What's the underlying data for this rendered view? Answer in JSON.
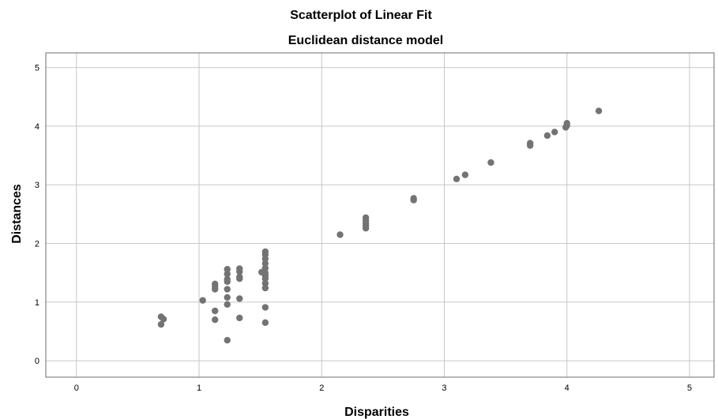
{
  "chart_data": {
    "type": "scatter",
    "title": "Scatterplot of Linear Fit",
    "subtitle": "Euclidean distance model",
    "xlabel": "Disparities",
    "ylabel": "Distances",
    "xlim": [
      -0.25,
      5.2
    ],
    "ylim": [
      -0.28,
      5.25
    ],
    "xticks": [
      "0",
      "1",
      "2",
      "3",
      "4",
      "5"
    ],
    "yticks": [
      "0",
      "1",
      "2",
      "3",
      "4",
      "5"
    ],
    "grid": true,
    "legend": "none",
    "point_color": "#737373",
    "points": [
      {
        "x": 0.69,
        "y": 0.75
      },
      {
        "x": 0.71,
        "y": 0.71
      },
      {
        "x": 0.69,
        "y": 0.62
      },
      {
        "x": 1.03,
        "y": 1.03
      },
      {
        "x": 1.13,
        "y": 1.31
      },
      {
        "x": 1.13,
        "y": 1.27
      },
      {
        "x": 1.13,
        "y": 1.22
      },
      {
        "x": 1.13,
        "y": 0.85
      },
      {
        "x": 1.13,
        "y": 0.7
      },
      {
        "x": 1.23,
        "y": 1.56
      },
      {
        "x": 1.23,
        "y": 1.48
      },
      {
        "x": 1.23,
        "y": 1.39
      },
      {
        "x": 1.23,
        "y": 1.35
      },
      {
        "x": 1.23,
        "y": 1.22
      },
      {
        "x": 1.23,
        "y": 1.08
      },
      {
        "x": 1.23,
        "y": 0.96
      },
      {
        "x": 1.23,
        "y": 0.35
      },
      {
        "x": 1.33,
        "y": 1.57
      },
      {
        "x": 1.33,
        "y": 1.52
      },
      {
        "x": 1.33,
        "y": 1.43
      },
      {
        "x": 1.33,
        "y": 1.4
      },
      {
        "x": 1.33,
        "y": 1.06
      },
      {
        "x": 1.33,
        "y": 0.73
      },
      {
        "x": 1.51,
        "y": 1.51
      },
      {
        "x": 1.54,
        "y": 1.86
      },
      {
        "x": 1.54,
        "y": 1.81
      },
      {
        "x": 1.54,
        "y": 1.74
      },
      {
        "x": 1.54,
        "y": 1.66
      },
      {
        "x": 1.54,
        "y": 1.58
      },
      {
        "x": 1.54,
        "y": 1.5
      },
      {
        "x": 1.54,
        "y": 1.45
      },
      {
        "x": 1.54,
        "y": 1.4
      },
      {
        "x": 1.54,
        "y": 1.32
      },
      {
        "x": 1.54,
        "y": 1.24
      },
      {
        "x": 1.54,
        "y": 0.91
      },
      {
        "x": 1.54,
        "y": 0.65
      },
      {
        "x": 2.15,
        "y": 2.15
      },
      {
        "x": 2.36,
        "y": 2.44
      },
      {
        "x": 2.36,
        "y": 2.39
      },
      {
        "x": 2.36,
        "y": 2.34
      },
      {
        "x": 2.36,
        "y": 2.3
      },
      {
        "x": 2.36,
        "y": 2.26
      },
      {
        "x": 2.75,
        "y": 2.77
      },
      {
        "x": 2.75,
        "y": 2.74
      },
      {
        "x": 3.1,
        "y": 3.1
      },
      {
        "x": 3.17,
        "y": 3.17
      },
      {
        "x": 3.38,
        "y": 3.38
      },
      {
        "x": 3.7,
        "y": 3.71
      },
      {
        "x": 3.7,
        "y": 3.67
      },
      {
        "x": 3.84,
        "y": 3.84
      },
      {
        "x": 3.9,
        "y": 3.9
      },
      {
        "x": 4.0,
        "y": 4.05
      },
      {
        "x": 4.0,
        "y": 4.01
      },
      {
        "x": 3.99,
        "y": 3.98
      },
      {
        "x": 4.26,
        "y": 4.26
      }
    ]
  }
}
